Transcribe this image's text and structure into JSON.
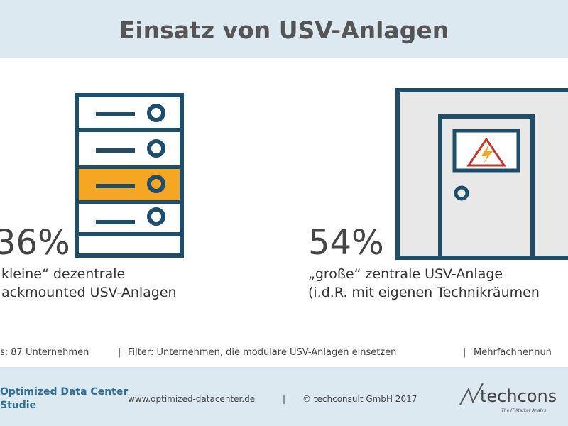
{
  "header": {
    "title": "Einsatz von USV-Anlagen"
  },
  "left": {
    "percent": "36%",
    "lines": [
      "kleine“ dezentrale",
      "ackmounted USV-Anlagen"
    ]
  },
  "right": {
    "percent": "54%",
    "lines": [
      "„große“ zentrale USV-Anlage",
      "(i.d.R. mit eigenen Technikräumen"
    ]
  },
  "note": [
    "s: 87 Unternehmen",
    "Filter: Unternehmen, die modulare USV-Anlagen einsetzen",
    "Mehrfachnennun"
  ],
  "footer": {
    "study": [
      "Optimized Data Center",
      "Studie"
    ],
    "url": "www.optimized-datacenter.de",
    "separator": "|",
    "copyright": "© techconsult GmbH 2017",
    "brand": "techcons",
    "tagline": "The IT Market Analys"
  }
}
